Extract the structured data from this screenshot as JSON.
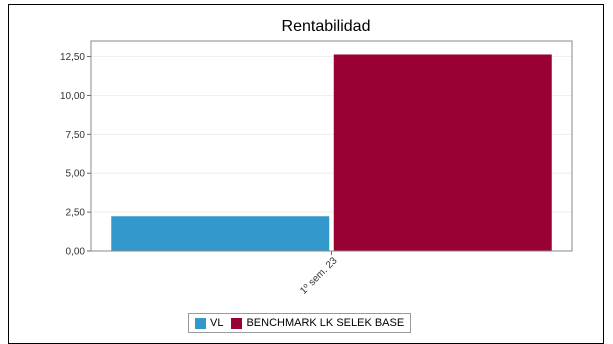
{
  "chart_data": {
    "type": "bar",
    "title": "Rentabilidad",
    "categories": [
      "1º sem. 23"
    ],
    "series": [
      {
        "name": "VL",
        "values": [
          2.25
        ],
        "color": "#3399cc"
      },
      {
        "name": "BENCHMARK LK SELEK BASE",
        "values": [
          12.65
        ],
        "color": "#990033"
      }
    ],
    "ylim": [
      0,
      13.5
    ],
    "yticks": [
      "0,00",
      "2,50",
      "5,00",
      "7,50",
      "10,00",
      "12,50"
    ],
    "ytick_values": [
      0,
      2.5,
      5,
      7.5,
      10,
      12.5
    ],
    "grid": true,
    "legend_position": "bottom"
  }
}
